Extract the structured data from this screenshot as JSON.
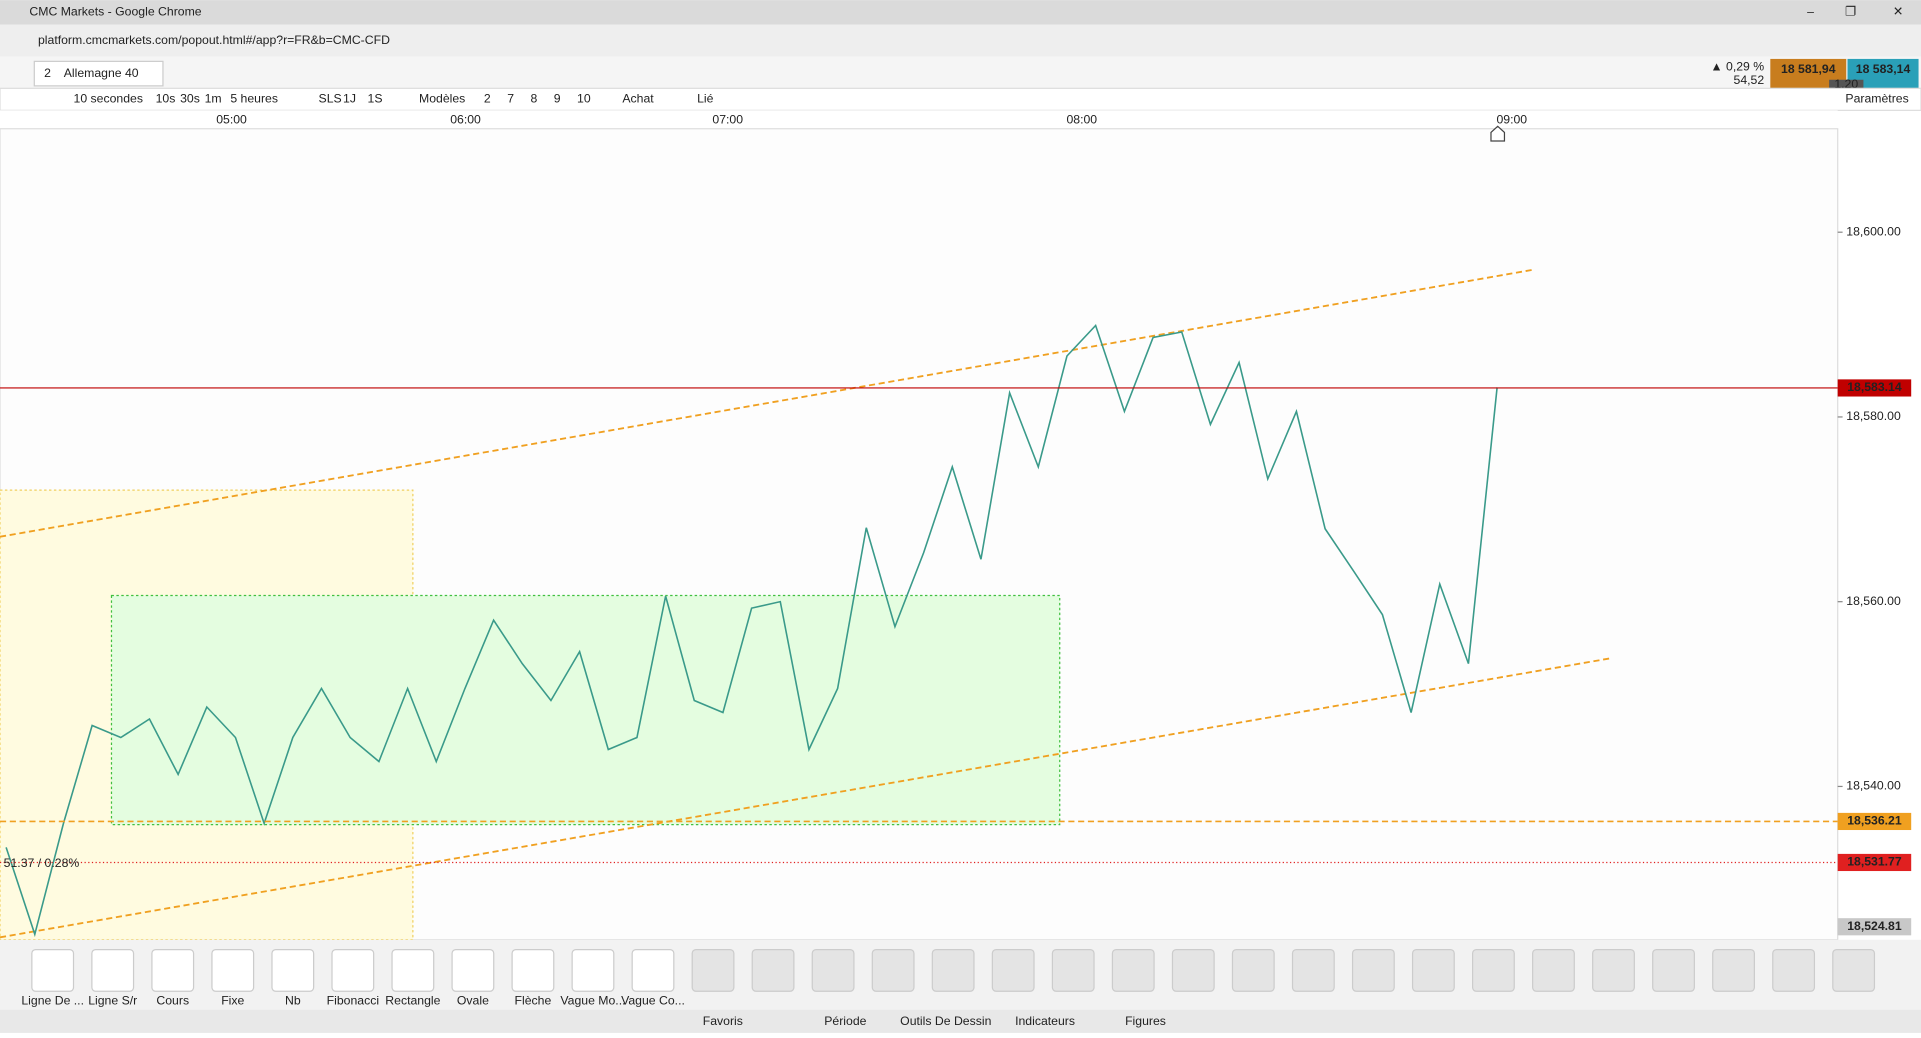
{
  "window": {
    "title": "CMC Markets - Google Chrome",
    "url": "platform.cmcmarkets.com/popout.html#/app?r=FR&b=CMC-CFD"
  },
  "instrument": {
    "badge": "2",
    "name": "Allemagne 40",
    "change_pct": "▲ 0,29 %",
    "change": "54,52",
    "sell": "18 581,94",
    "buy": "18 583,14",
    "spread": "1.20"
  },
  "toolbar": {
    "interval": "10 secondes",
    "quick": [
      "10s",
      "30s",
      "1m"
    ],
    "range": "5 heures",
    "periods": [
      "SLS",
      "1J",
      "1S"
    ],
    "templates": "Modèles",
    "counts": [
      "2",
      "7",
      "8",
      "9",
      "10"
    ],
    "buy": "Achat",
    "linked": "Lié",
    "settings": "Paramètres"
  },
  "chart_data": {
    "type": "line",
    "color": "#3a9a8a",
    "values": [
      18533.4,
      18524.0,
      18536.0,
      18546.6,
      18545.3,
      18547.3,
      18541.3,
      18548.6,
      18545.3,
      18536.0,
      18545.3,
      18550.6,
      18545.3,
      18542.7,
      18550.6,
      18542.7,
      18550.6,
      18558.0,
      18553.3,
      18549.3,
      18554.6,
      18544.0,
      18545.3,
      18560.6,
      18549.3,
      18548.0,
      18559.3,
      18560.0,
      18544.0,
      18550.6,
      18568.0,
      18557.3,
      18565.3,
      18574.6,
      18564.6,
      18582.6,
      18574.6,
      18586.6,
      18589.9,
      18580.6,
      18588.6,
      18589.2,
      18579.2,
      18585.9,
      18573.3,
      18580.6,
      18567.9,
      18563.3,
      18558.6,
      18548.0,
      18561.9,
      18553.3,
      18583.2
    ],
    "ylim": [
      18523.4,
      18611.2
    ],
    "yticks": [
      {
        "value": 18540,
        "label": "18,540.00"
      },
      {
        "value": 18560,
        "label": "18,560.00"
      },
      {
        "value": 18580,
        "label": "18,580.00"
      },
      {
        "value": 18600,
        "label": "18,600.00"
      }
    ],
    "time_labels": [
      "05:00",
      "06:00",
      "07:00",
      "08:00",
      "09:00"
    ],
    "price_tags": [
      {
        "value": 18583.14,
        "label": "18,583.14",
        "color": "#c00000"
      },
      {
        "value": 18536.21,
        "label": "18,536.21",
        "color": "#f0a020"
      },
      {
        "value": 18531.77,
        "label": "18,531.77",
        "color": "#e02020"
      },
      {
        "value": 18524.81,
        "label": "18,524.81",
        "color": "#c8c8c8"
      }
    ],
    "annotation": "51.37 / 0.28%"
  },
  "tools": [
    "Ligne De ...",
    "Ligne S/r",
    "Cours",
    "Fixe",
    "Nb",
    "Fibonacci",
    "Rectangle",
    "Ovale",
    "Flèche",
    "Vague Mo...",
    "Vague Co..."
  ],
  "tabs": [
    "Favoris",
    "Période",
    "Outils De Dessin",
    "Indicateurs",
    "Figures"
  ]
}
